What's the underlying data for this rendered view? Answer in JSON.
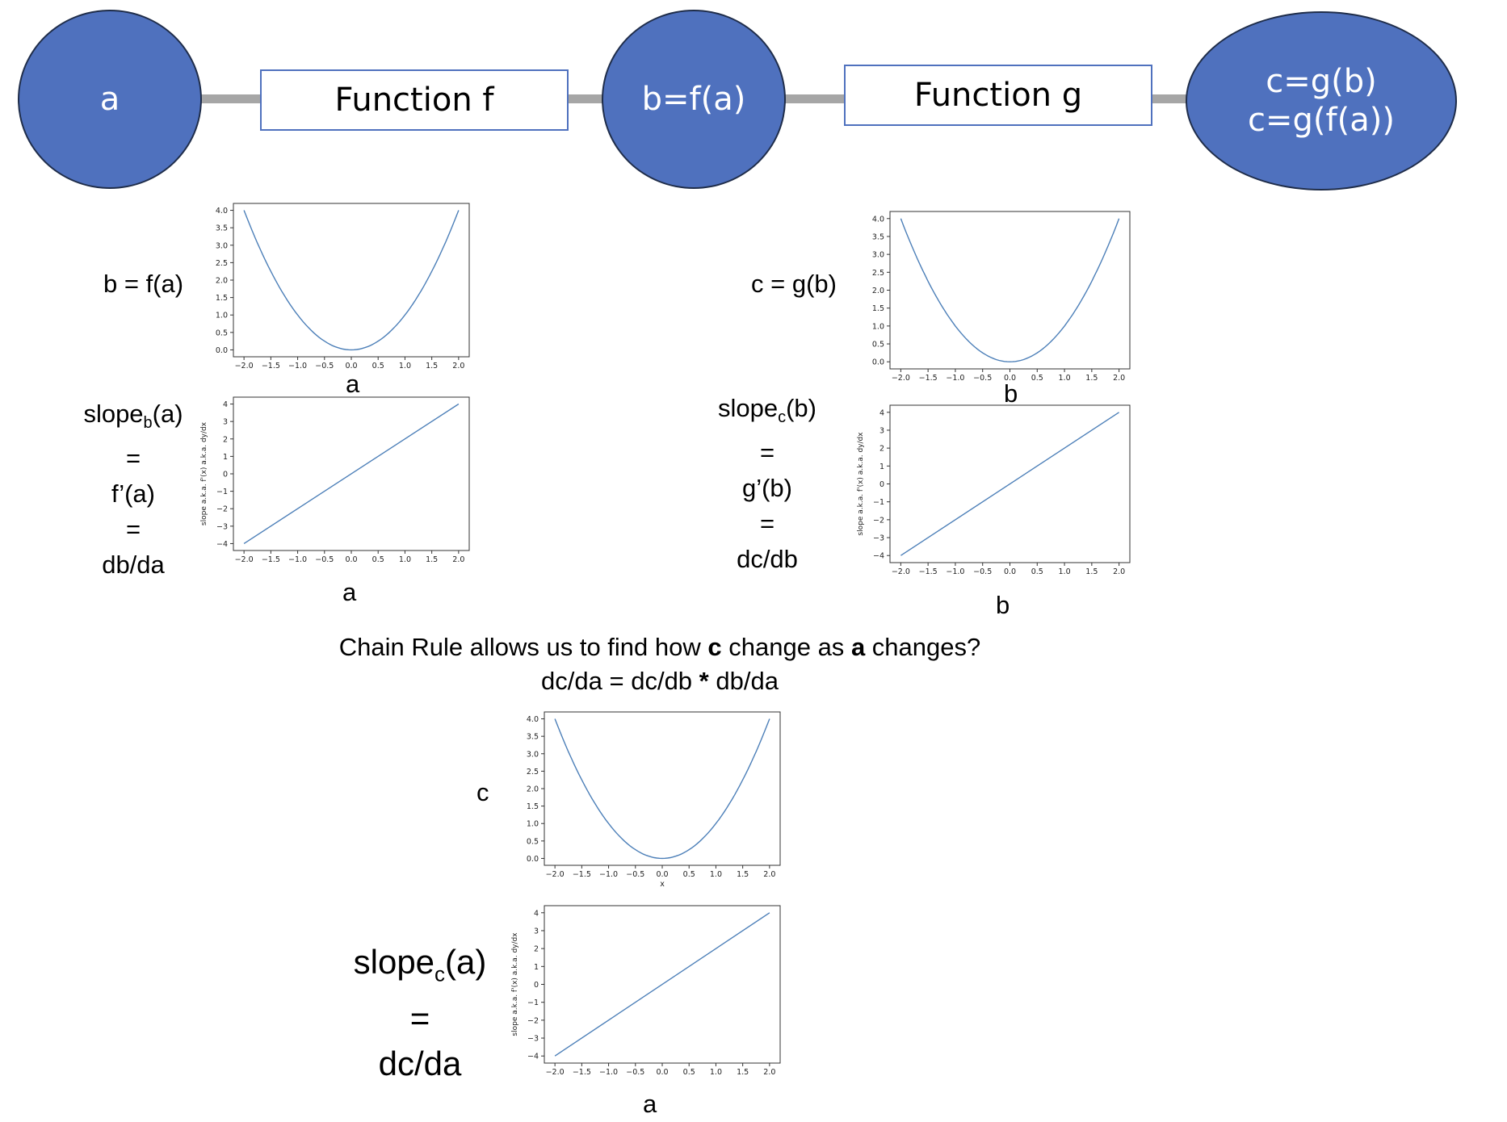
{
  "flow": {
    "node_a": "a",
    "function_f": "Function f",
    "node_b": "b=f(a)",
    "function_g": "Function g",
    "node_c_line1": "c=g(b)",
    "node_c_line2": "c=g(f(a))"
  },
  "labels": {
    "b_eq_fa": "b = f(a)",
    "a1": "a",
    "slope_b_prefix": "slope",
    "slope_b_sub": "b",
    "slope_b_suffix": "(a)",
    "eq1": "=",
    "f_prime": "f’(a)",
    "eq2": "=",
    "db_da": "db/da",
    "a2": "a",
    "c_eq_gb": "c = g(b)",
    "b1": "b",
    "slope_c_prefix": "slope",
    "slope_c_sub": "c",
    "slope_c_suffix": "(b)",
    "eq3": "=",
    "g_prime": "g’(b)",
    "eq4": "=",
    "dc_db": "dc/db",
    "b2": "b",
    "chain_pre": "Chain Rule allows us to find how ",
    "chain_c": "c",
    "chain_mid": " change as ",
    "chain_a": "a",
    "chain_post": " changes?",
    "chain_formula_pre": "dc/da = dc/db ",
    "chain_formula_star": "*",
    "chain_formula_post": " db/da",
    "c_label": "c",
    "slope_ca_prefix": "slope",
    "slope_ca_sub": "c",
    "slope_ca_suffix": "(a)",
    "eq5": "=",
    "dc_da": "dc/da",
    "a3": "a"
  },
  "colors": {
    "node_fill": "#4f71be",
    "link": "#a6a6a6",
    "curve": "#4c7fb8"
  },
  "chart_data": [
    {
      "type": "line",
      "shape": "parabola",
      "x": [
        -2,
        -1.5,
        -1,
        -0.5,
        0,
        0.5,
        1,
        1.5,
        2
      ],
      "y": [
        4,
        2.25,
        1,
        0.25,
        0,
        0.25,
        1,
        2.25,
        4
      ],
      "xlim": [
        -2,
        2
      ],
      "ylim": [
        0,
        4
      ],
      "xticks": [
        "−2.0",
        "−1.5",
        "−1.0",
        "−0.5",
        "0.0",
        "0.5",
        "1.0",
        "1.5",
        "2.0"
      ],
      "yticks": [
        "0.0",
        "0.5",
        "1.0",
        "1.5",
        "2.0",
        "2.5",
        "3.0",
        "3.5",
        "4.0"
      ],
      "xlabel": "",
      "ylabel": ""
    },
    {
      "type": "line",
      "shape": "linear",
      "x": [
        -2,
        2
      ],
      "y": [
        -4,
        4
      ],
      "xlim": [
        -2,
        2
      ],
      "ylim": [
        -4,
        4
      ],
      "xticks": [
        "−2.0",
        "−1.5",
        "−1.0",
        "−0.5",
        "0.0",
        "0.5",
        "1.0",
        "1.5",
        "2.0"
      ],
      "yticks": [
        "−4",
        "−3",
        "−2",
        "−1",
        "0",
        "1",
        "2",
        "3",
        "4"
      ],
      "xlabel": "",
      "ylabel": "slope a.k.a. f'(x) a.k.a. dy/dx"
    },
    {
      "type": "line",
      "shape": "parabola",
      "x": [
        -2,
        -1.5,
        -1,
        -0.5,
        0,
        0.5,
        1,
        1.5,
        2
      ],
      "y": [
        4,
        2.25,
        1,
        0.25,
        0,
        0.25,
        1,
        2.25,
        4
      ],
      "xlim": [
        -2,
        2
      ],
      "ylim": [
        0,
        4
      ],
      "xticks": [
        "−2.0",
        "−1.5",
        "−1.0",
        "−0.5",
        "0.0",
        "0.5",
        "1.0",
        "1.5",
        "2.0"
      ],
      "yticks": [
        "0.0",
        "0.5",
        "1.0",
        "1.5",
        "2.0",
        "2.5",
        "3.0",
        "3.5",
        "4.0"
      ],
      "xlabel": "",
      "ylabel": ""
    },
    {
      "type": "line",
      "shape": "linear",
      "x": [
        -2,
        2
      ],
      "y": [
        -4,
        4
      ],
      "xlim": [
        -2,
        2
      ],
      "ylim": [
        -4,
        4
      ],
      "xticks": [
        "−2.0",
        "−1.5",
        "−1.0",
        "−0.5",
        "0.0",
        "0.5",
        "1.0",
        "1.5",
        "2.0"
      ],
      "yticks": [
        "−4",
        "−3",
        "−2",
        "−1",
        "0",
        "1",
        "2",
        "3",
        "4"
      ],
      "xlabel": "",
      "ylabel": "slope a.k.a. f'(x) a.k.a. dy/dx"
    },
    {
      "type": "line",
      "shape": "parabola",
      "x": [
        -2,
        -1.5,
        -1,
        -0.5,
        0,
        0.5,
        1,
        1.5,
        2
      ],
      "y": [
        4,
        2.25,
        1,
        0.25,
        0,
        0.25,
        1,
        2.25,
        4
      ],
      "xlim": [
        -2,
        2
      ],
      "ylim": [
        0,
        4
      ],
      "xticks": [
        "−2.0",
        "−1.5",
        "−1.0",
        "−0.5",
        "0.0",
        "0.5",
        "1.0",
        "1.5",
        "2.0"
      ],
      "yticks": [
        "0.0",
        "0.5",
        "1.0",
        "1.5",
        "2.0",
        "2.5",
        "3.0",
        "3.5",
        "4.0"
      ],
      "xlabel": "x",
      "ylabel": ""
    },
    {
      "type": "line",
      "shape": "linear",
      "x": [
        -2,
        2
      ],
      "y": [
        -4,
        4
      ],
      "xlim": [
        -2,
        2
      ],
      "ylim": [
        -4,
        4
      ],
      "xticks": [
        "−2.0",
        "−1.5",
        "−1.0",
        "−0.5",
        "0.0",
        "0.5",
        "1.0",
        "1.5",
        "2.0"
      ],
      "yticks": [
        "−4",
        "−3",
        "−2",
        "−1",
        "0",
        "1",
        "2",
        "3",
        "4"
      ],
      "xlabel": "",
      "ylabel": "slope a.k.a. f'(x) a.k.a. dy/dx"
    }
  ]
}
